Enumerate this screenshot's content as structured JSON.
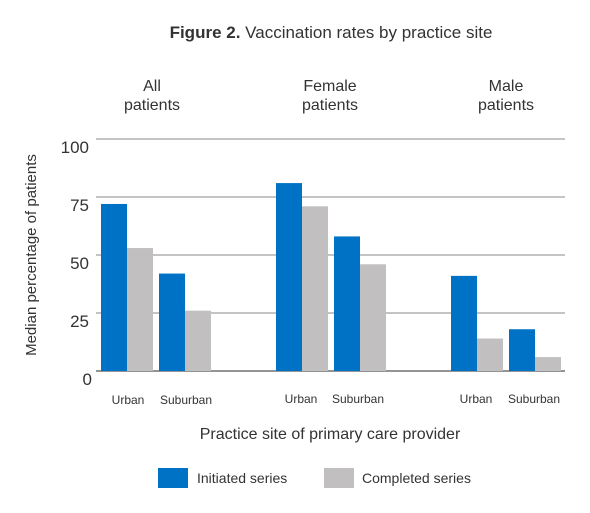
{
  "chart_data": {
    "type": "bar",
    "title_bold": "Figure 2.",
    "title_rest": " Vaccination rates by practice site",
    "xlabel": "Practice site of primary care provider",
    "ylabel": "Median percentage of patients",
    "ylim": [
      0,
      100
    ],
    "yticks": [
      "0",
      "25",
      "50",
      "75",
      "100"
    ],
    "grid": true,
    "legend_position": "bottom",
    "groups": [
      {
        "label_line1": "All",
        "label_line2": "patients"
      },
      {
        "label_line1": "Female",
        "label_line2": "patients"
      },
      {
        "label_line1": "Male",
        "label_line2": "patients"
      }
    ],
    "categories": [
      "Urban",
      "Suburban",
      "Urban",
      "Suburban",
      "Urban",
      "Suburban"
    ],
    "series": [
      {
        "name": "Initiated series",
        "color": "#0072c6",
        "values": [
          72,
          42,
          81,
          58,
          41,
          18
        ]
      },
      {
        "name": "Completed series",
        "color": "#c1bfc0",
        "values": [
          53,
          26,
          71,
          46,
          14,
          6
        ]
      }
    ]
  }
}
